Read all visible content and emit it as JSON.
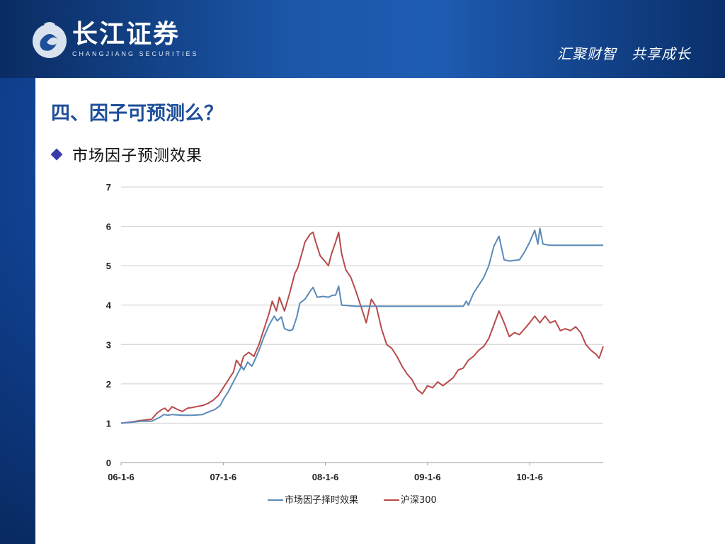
{
  "header": {
    "logo_cn": "长江证券",
    "logo_en": "CHANGJIANG SECURITIES",
    "slogan": "汇聚财智　共享成长"
  },
  "slide": {
    "title": "四、因子可预测么？",
    "bullet": "市场因子预测效果"
  },
  "colors": {
    "title": "#1d4f9a",
    "series_factor": "#5b8ab8",
    "series_index": "#b84a4a"
  },
  "chart_data": {
    "type": "line",
    "title": "",
    "xlabel": "",
    "ylabel": "",
    "ylim": [
      0,
      7
    ],
    "yticks": [
      "0",
      "1",
      "2",
      "3",
      "4",
      "5",
      "6",
      "7"
    ],
    "xticks": [
      "06-1-6",
      "07-1-6",
      "08-1-6",
      "09-1-6",
      "10-1-6"
    ],
    "xrange": [
      0,
      4.72
    ],
    "grid": "horizontal",
    "legend_position": "bottom",
    "series": [
      {
        "name": "市场因子择时效果",
        "color": "#5b8ab8",
        "points": [
          [
            0,
            1.0
          ],
          [
            0.1,
            1.02
          ],
          [
            0.2,
            1.05
          ],
          [
            0.3,
            1.05
          ],
          [
            0.38,
            1.15
          ],
          [
            0.42,
            1.22
          ],
          [
            0.46,
            1.2
          ],
          [
            0.5,
            1.22
          ],
          [
            0.6,
            1.2
          ],
          [
            0.7,
            1.2
          ],
          [
            0.8,
            1.22
          ],
          [
            0.85,
            1.28
          ],
          [
            0.92,
            1.35
          ],
          [
            0.97,
            1.45
          ],
          [
            1.0,
            1.6
          ],
          [
            1.05,
            1.8
          ],
          [
            1.1,
            2.05
          ],
          [
            1.15,
            2.3
          ],
          [
            1.18,
            2.45
          ],
          [
            1.2,
            2.35
          ],
          [
            1.24,
            2.55
          ],
          [
            1.28,
            2.45
          ],
          [
            1.3,
            2.55
          ],
          [
            1.35,
            2.85
          ],
          [
            1.4,
            3.2
          ],
          [
            1.45,
            3.5
          ],
          [
            1.5,
            3.72
          ],
          [
            1.53,
            3.6
          ],
          [
            1.57,
            3.7
          ],
          [
            1.6,
            3.4
          ],
          [
            1.65,
            3.35
          ],
          [
            1.68,
            3.38
          ],
          [
            1.72,
            3.7
          ],
          [
            1.75,
            4.05
          ],
          [
            1.8,
            4.15
          ],
          [
            1.85,
            4.35
          ],
          [
            1.88,
            4.45
          ],
          [
            1.92,
            4.2
          ],
          [
            1.98,
            4.22
          ],
          [
            2.03,
            4.2
          ],
          [
            2.07,
            4.25
          ],
          [
            2.1,
            4.25
          ],
          [
            2.13,
            4.48
          ],
          [
            2.16,
            4.0
          ],
          [
            2.3,
            3.97
          ],
          [
            2.6,
            3.97
          ],
          [
            2.9,
            3.97
          ],
          [
            3.2,
            3.97
          ],
          [
            3.35,
            3.97
          ],
          [
            3.38,
            4.1
          ],
          [
            3.4,
            4.0
          ],
          [
            3.45,
            4.3
          ],
          [
            3.5,
            4.5
          ],
          [
            3.55,
            4.7
          ],
          [
            3.6,
            5.0
          ],
          [
            3.65,
            5.5
          ],
          [
            3.7,
            5.75
          ],
          [
            3.75,
            5.15
          ],
          [
            3.8,
            5.12
          ],
          [
            3.9,
            5.15
          ],
          [
            3.95,
            5.35
          ],
          [
            4.0,
            5.6
          ],
          [
            4.05,
            5.9
          ],
          [
            4.08,
            5.55
          ],
          [
            4.1,
            5.95
          ],
          [
            4.13,
            5.55
          ],
          [
            4.2,
            5.52
          ],
          [
            4.4,
            5.52
          ],
          [
            4.6,
            5.52
          ],
          [
            4.72,
            5.52
          ]
        ]
      },
      {
        "name": "沪深300",
        "color": "#b84a4a",
        "points": [
          [
            0,
            1.0
          ],
          [
            0.1,
            1.03
          ],
          [
            0.2,
            1.07
          ],
          [
            0.3,
            1.1
          ],
          [
            0.35,
            1.25
          ],
          [
            0.4,
            1.35
          ],
          [
            0.43,
            1.38
          ],
          [
            0.46,
            1.3
          ],
          [
            0.5,
            1.42
          ],
          [
            0.55,
            1.35
          ],
          [
            0.6,
            1.3
          ],
          [
            0.65,
            1.38
          ],
          [
            0.7,
            1.4
          ],
          [
            0.8,
            1.45
          ],
          [
            0.85,
            1.5
          ],
          [
            0.9,
            1.58
          ],
          [
            0.95,
            1.7
          ],
          [
            1.0,
            1.9
          ],
          [
            1.05,
            2.1
          ],
          [
            1.1,
            2.3
          ],
          [
            1.13,
            2.6
          ],
          [
            1.17,
            2.45
          ],
          [
            1.2,
            2.7
          ],
          [
            1.25,
            2.8
          ],
          [
            1.3,
            2.7
          ],
          [
            1.35,
            3.0
          ],
          [
            1.4,
            3.4
          ],
          [
            1.45,
            3.8
          ],
          [
            1.48,
            4.1
          ],
          [
            1.52,
            3.85
          ],
          [
            1.55,
            4.2
          ],
          [
            1.6,
            3.85
          ],
          [
            1.65,
            4.3
          ],
          [
            1.7,
            4.8
          ],
          [
            1.73,
            4.95
          ],
          [
            1.78,
            5.4
          ],
          [
            1.8,
            5.6
          ],
          [
            1.85,
            5.8
          ],
          [
            1.88,
            5.85
          ],
          [
            1.9,
            5.65
          ],
          [
            1.95,
            5.25
          ],
          [
            2.0,
            5.1
          ],
          [
            2.03,
            5.0
          ],
          [
            2.06,
            5.3
          ],
          [
            2.1,
            5.6
          ],
          [
            2.13,
            5.85
          ],
          [
            2.16,
            5.3
          ],
          [
            2.2,
            4.9
          ],
          [
            2.25,
            4.7
          ],
          [
            2.3,
            4.35
          ],
          [
            2.35,
            3.95
          ],
          [
            2.4,
            3.55
          ],
          [
            2.45,
            4.15
          ],
          [
            2.5,
            3.95
          ],
          [
            2.55,
            3.4
          ],
          [
            2.6,
            3.0
          ],
          [
            2.65,
            2.9
          ],
          [
            2.7,
            2.7
          ],
          [
            2.75,
            2.45
          ],
          [
            2.8,
            2.25
          ],
          [
            2.85,
            2.1
          ],
          [
            2.9,
            1.85
          ],
          [
            2.95,
            1.75
          ],
          [
            3.0,
            1.95
          ],
          [
            3.05,
            1.9
          ],
          [
            3.1,
            2.05
          ],
          [
            3.15,
            1.95
          ],
          [
            3.2,
            2.05
          ],
          [
            3.25,
            2.15
          ],
          [
            3.3,
            2.35
          ],
          [
            3.35,
            2.4
          ],
          [
            3.4,
            2.6
          ],
          [
            3.45,
            2.7
          ],
          [
            3.5,
            2.85
          ],
          [
            3.55,
            2.95
          ],
          [
            3.6,
            3.15
          ],
          [
            3.65,
            3.5
          ],
          [
            3.7,
            3.85
          ],
          [
            3.75,
            3.55
          ],
          [
            3.8,
            3.2
          ],
          [
            3.85,
            3.3
          ],
          [
            3.9,
            3.25
          ],
          [
            3.95,
            3.4
          ],
          [
            4.0,
            3.55
          ],
          [
            4.05,
            3.72
          ],
          [
            4.1,
            3.55
          ],
          [
            4.15,
            3.72
          ],
          [
            4.2,
            3.55
          ],
          [
            4.25,
            3.6
          ],
          [
            4.3,
            3.35
          ],
          [
            4.35,
            3.4
          ],
          [
            4.4,
            3.35
          ],
          [
            4.45,
            3.45
          ],
          [
            4.5,
            3.3
          ],
          [
            4.55,
            3.0
          ],
          [
            4.6,
            2.85
          ],
          [
            4.65,
            2.75
          ],
          [
            4.68,
            2.65
          ],
          [
            4.7,
            2.8
          ],
          [
            4.72,
            2.95
          ]
        ]
      }
    ]
  }
}
